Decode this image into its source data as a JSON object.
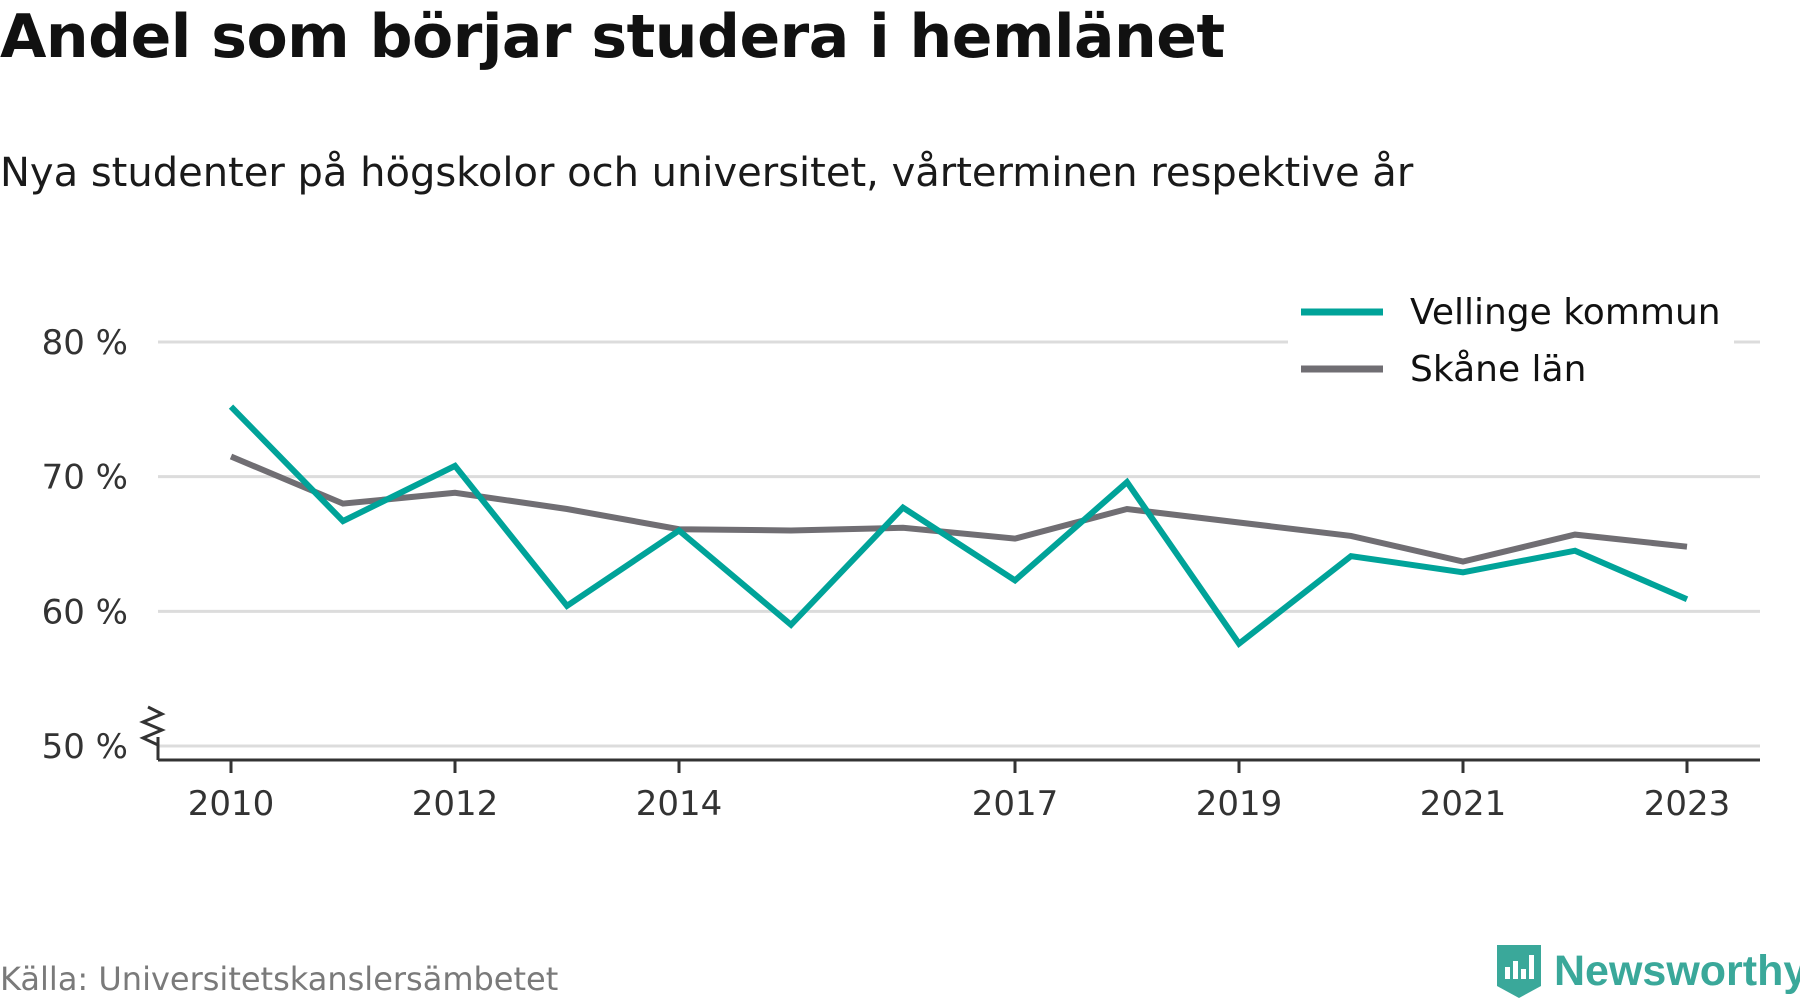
{
  "title": "Andel som börjar studera i hemlänet",
  "subtitle": "Nya studenter på högskolor och universitet, vårterminen respektive år",
  "source": "Källa: Universitetskanslersämbetet",
  "brand": {
    "name": "Newsworthy",
    "icon": "newsworthy-logo-icon",
    "color": "#3aa89a"
  },
  "chart_data": {
    "type": "line",
    "x": [
      2010,
      2011,
      2012,
      2013,
      2014,
      2015,
      2016,
      2017,
      2018,
      2019,
      2020,
      2021,
      2022,
      2023
    ],
    "x_tick_labels": [
      "2010",
      "2012",
      "2014",
      "2017",
      "2019",
      "2021",
      "2023"
    ],
    "y_ticks": [
      {
        "value": 50,
        "label": "50 %"
      },
      {
        "value": 60,
        "label": "60 %"
      },
      {
        "value": 70,
        "label": "70 %"
      },
      {
        "value": 80,
        "label": "80 %"
      }
    ],
    "ylim": [
      50,
      83
    ],
    "y_axis_break": true,
    "grid": true,
    "legend_position": "top-right",
    "series": [
      {
        "name": "Vellinge kommun",
        "color": "#00a399",
        "values": [
          75.2,
          66.7,
          70.8,
          60.4,
          66.0,
          59.0,
          67.7,
          62.3,
          69.6,
          57.6,
          64.1,
          62.9,
          64.5,
          60.9
        ]
      },
      {
        "name": "Skåne län",
        "color": "#706e73",
        "values": [
          71.5,
          68.0,
          68.8,
          67.6,
          66.1,
          66.0,
          66.2,
          65.4,
          67.6,
          66.6,
          65.6,
          63.7,
          65.7,
          64.8
        ]
      }
    ]
  }
}
